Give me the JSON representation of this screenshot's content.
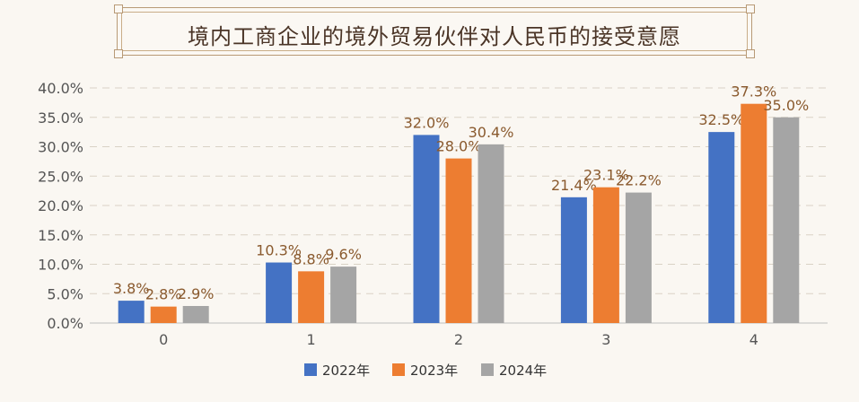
{
  "title": "境内工商企业的境外贸易伙伴对人民币的接受意愿",
  "colors": {
    "s2022": "#4472c4",
    "s2023": "#ed7d31",
    "s2024": "#a5a5a5",
    "label": "#8a5a2e",
    "grid": "#d9d2c5"
  },
  "chart_data": {
    "type": "bar",
    "title": "境内工商企业的境外贸易伙伴对人民币的接受意愿",
    "xlabel": "",
    "ylabel": "",
    "categories": [
      "0",
      "1",
      "2",
      "3",
      "4"
    ],
    "ylim": [
      0,
      0.4
    ],
    "yticks": [
      "0.0%",
      "5.0%",
      "10.0%",
      "15.0%",
      "20.0%",
      "25.0%",
      "30.0%",
      "35.0%",
      "40.0%"
    ],
    "grid": true,
    "legend_position": "bottom",
    "series": [
      {
        "name": "2022年",
        "values": [
          0.038,
          0.103,
          0.32,
          0.214,
          0.325
        ],
        "labels": [
          "3.8%",
          "10.3%",
          "32.0%",
          "21.4%",
          "32.5%"
        ]
      },
      {
        "name": "2023年",
        "values": [
          0.028,
          0.088,
          0.28,
          0.231,
          0.373
        ],
        "labels": [
          "2.8%",
          "8.8%",
          "28.0%",
          "23.1%",
          "37.3%"
        ]
      },
      {
        "name": "2024年",
        "values": [
          0.029,
          0.096,
          0.304,
          0.222,
          0.35
        ],
        "labels": [
          "2.9%",
          "9.6%",
          "30.4%",
          "22.2%",
          "35.0%"
        ]
      }
    ]
  }
}
